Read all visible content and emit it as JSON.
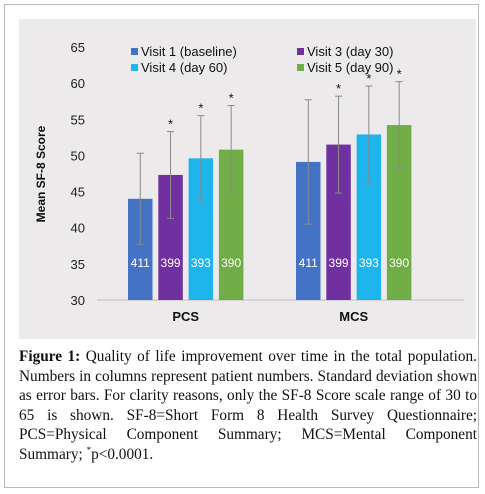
{
  "chart_data": {
    "type": "bar",
    "ylabel": "Mean SF-8 Score",
    "ylim": [
      30,
      65
    ],
    "yticks": [
      30,
      35,
      40,
      45,
      50,
      55,
      60,
      65
    ],
    "categories": [
      "PCS",
      "MCS"
    ],
    "legend_position": "top",
    "series": [
      {
        "name": "Visit 1 (baseline)",
        "color": "#4472c4",
        "values": [
          44.0,
          49.1
        ],
        "sd": [
          6.3,
          8.6
        ],
        "n": [
          "411",
          "411"
        ],
        "significant": [
          false,
          false
        ]
      },
      {
        "name": "Visit 3 (day 30)",
        "color": "#7030a0",
        "values": [
          47.3,
          51.5
        ],
        "sd": [
          6.0,
          6.7
        ],
        "n": [
          "399",
          "399"
        ],
        "significant": [
          true,
          true
        ]
      },
      {
        "name": "Visit 4 (day 60)",
        "color": "#1eb4ec",
        "values": [
          49.6,
          52.9
        ],
        "sd": [
          5.9,
          6.7
        ],
        "n": [
          "393",
          "393"
        ],
        "significant": [
          true,
          true
        ]
      },
      {
        "name": "Visit 5 (day 90)",
        "color": "#70ad47",
        "values": [
          50.8,
          54.2
        ],
        "sd": [
          6.1,
          6.0
        ],
        "n": [
          "390",
          "390"
        ],
        "significant": [
          true,
          true
        ]
      }
    ],
    "significance_marker": "*"
  },
  "caption": {
    "label": "Figure 1:",
    "text_before_sup": " Quality of life improvement over time in the total population. Numbers in columns represent patient numbers. Standard deviation shown as error bars. For clarity reasons, only the SF-8 Score scale range of 30 to 65 is shown. SF-8=Short Form 8 Health Survey Questionnaire; PCS=Physical Component Summary; MCS=Mental Component Summary; ",
    "sup": "*",
    "text_after_sup": "p<0.0001."
  }
}
